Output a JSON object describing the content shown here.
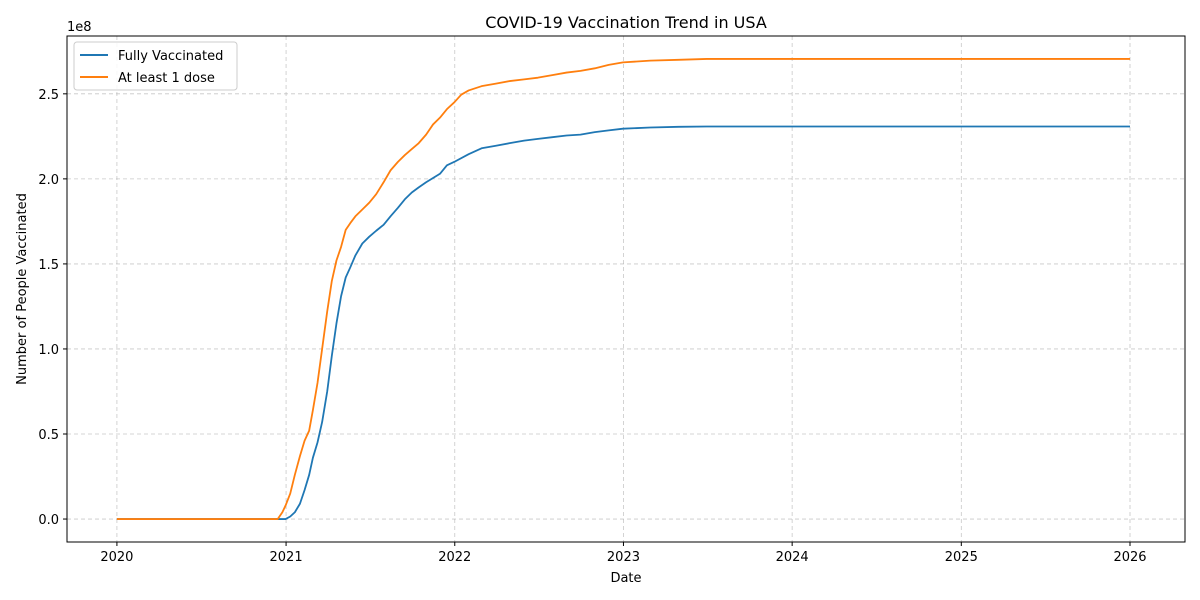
{
  "chart_data": {
    "type": "line",
    "title": "COVID-19 Vaccination Trend in USA",
    "xlabel": "Date",
    "ylabel": "Number of People Vaccinated",
    "y_offset_label": "1e8",
    "x_tick_labels": [
      "2020",
      "2021",
      "2022",
      "2023",
      "2024",
      "2025",
      "2026"
    ],
    "y_tick_labels": [
      "0.0",
      "0.5",
      "1.0",
      "1.5",
      "2.0",
      "2.5"
    ],
    "y_ticks": [
      0,
      50000000,
      100000000,
      150000000,
      200000000,
      250000000
    ],
    "xlim": [
      "2019-09-15",
      "2026-04-30"
    ],
    "ylim": [
      -13500000,
      284000000
    ],
    "grid": true,
    "legend_position": "top-left",
    "series": [
      {
        "name": "Fully Vaccinated",
        "color": "#1f77b4",
        "points": [
          [
            "2020-01-01",
            0
          ],
          [
            "2020-12-31",
            0
          ],
          [
            "2021-01-10",
            1500000
          ],
          [
            "2021-01-20",
            4000000
          ],
          [
            "2021-01-31",
            9000000
          ],
          [
            "2021-02-10",
            17000000
          ],
          [
            "2021-02-20",
            26000000
          ],
          [
            "2021-02-28",
            36000000
          ],
          [
            "2021-03-10",
            45000000
          ],
          [
            "2021-03-20",
            57000000
          ],
          [
            "2021-03-31",
            75000000
          ],
          [
            "2021-04-10",
            96000000
          ],
          [
            "2021-04-20",
            115000000
          ],
          [
            "2021-04-30",
            131000000
          ],
          [
            "2021-05-10",
            142000000
          ],
          [
            "2021-05-20",
            148000000
          ],
          [
            "2021-05-31",
            155000000
          ],
          [
            "2021-06-15",
            162000000
          ],
          [
            "2021-06-30",
            166000000
          ],
          [
            "2021-07-15",
            169500000
          ],
          [
            "2021-07-31",
            173000000
          ],
          [
            "2021-08-15",
            178000000
          ],
          [
            "2021-08-31",
            183000000
          ],
          [
            "2021-09-15",
            188000000
          ],
          [
            "2021-09-30",
            192000000
          ],
          [
            "2021-10-15",
            195000000
          ],
          [
            "2021-10-31",
            198000000
          ],
          [
            "2021-11-15",
            200500000
          ],
          [
            "2021-11-30",
            203000000
          ],
          [
            "2021-12-15",
            208000000
          ],
          [
            "2021-12-31",
            210000000
          ],
          [
            "2022-01-31",
            214500000
          ],
          [
            "2022-02-28",
            218000000
          ],
          [
            "2022-03-31",
            219500000
          ],
          [
            "2022-04-30",
            221000000
          ],
          [
            "2022-05-31",
            222500000
          ],
          [
            "2022-06-30",
            223500000
          ],
          [
            "2022-07-31",
            224500000
          ],
          [
            "2022-08-31",
            225500000
          ],
          [
            "2022-09-30",
            226000000
          ],
          [
            "2022-10-31",
            227500000
          ],
          [
            "2022-11-30",
            228500000
          ],
          [
            "2022-12-31",
            229500000
          ],
          [
            "2023-02-28",
            230200000
          ],
          [
            "2023-04-30",
            230600000
          ],
          [
            "2023-06-30",
            230800000
          ],
          [
            "2026-01-01",
            230800000
          ]
        ]
      },
      {
        "name": "At least 1 dose",
        "color": "#ff7f0e",
        "points": [
          [
            "2020-01-01",
            0
          ],
          [
            "2020-12-14",
            0
          ],
          [
            "2020-12-24",
            4000000
          ],
          [
            "2020-12-31",
            8000000
          ],
          [
            "2021-01-10",
            15000000
          ],
          [
            "2021-01-20",
            26000000
          ],
          [
            "2021-01-31",
            37000000
          ],
          [
            "2021-02-10",
            46000000
          ],
          [
            "2021-02-20",
            52000000
          ],
          [
            "2021-02-28",
            64000000
          ],
          [
            "2021-03-10",
            80000000
          ],
          [
            "2021-03-20",
            100000000
          ],
          [
            "2021-03-31",
            122000000
          ],
          [
            "2021-04-10",
            140000000
          ],
          [
            "2021-04-20",
            152000000
          ],
          [
            "2021-04-30",
            160000000
          ],
          [
            "2021-05-10",
            170000000
          ],
          [
            "2021-05-20",
            174000000
          ],
          [
            "2021-05-31",
            178000000
          ],
          [
            "2021-06-15",
            182000000
          ],
          [
            "2021-06-30",
            186000000
          ],
          [
            "2021-07-15",
            191000000
          ],
          [
            "2021-07-31",
            198000000
          ],
          [
            "2021-08-15",
            205000000
          ],
          [
            "2021-08-31",
            210000000
          ],
          [
            "2021-09-15",
            214000000
          ],
          [
            "2021-09-30",
            217500000
          ],
          [
            "2021-10-15",
            221000000
          ],
          [
            "2021-10-31",
            226000000
          ],
          [
            "2021-11-15",
            232000000
          ],
          [
            "2021-11-30",
            236000000
          ],
          [
            "2021-12-15",
            241000000
          ],
          [
            "2021-12-31",
            245000000
          ],
          [
            "2022-01-15",
            249500000
          ],
          [
            "2022-01-31",
            252000000
          ],
          [
            "2022-02-28",
            254500000
          ],
          [
            "2022-03-31",
            256000000
          ],
          [
            "2022-04-30",
            257500000
          ],
          [
            "2022-05-31",
            258500000
          ],
          [
            "2022-06-30",
            259500000
          ],
          [
            "2022-07-31",
            261000000
          ],
          [
            "2022-08-31",
            262500000
          ],
          [
            "2022-09-30",
            263500000
          ],
          [
            "2022-10-31",
            265000000
          ],
          [
            "2022-11-30",
            267000000
          ],
          [
            "2022-12-31",
            268500000
          ],
          [
            "2023-02-28",
            269500000
          ],
          [
            "2023-04-30",
            270000000
          ],
          [
            "2023-06-30",
            270500000
          ],
          [
            "2026-01-01",
            270500000
          ]
        ]
      }
    ]
  }
}
